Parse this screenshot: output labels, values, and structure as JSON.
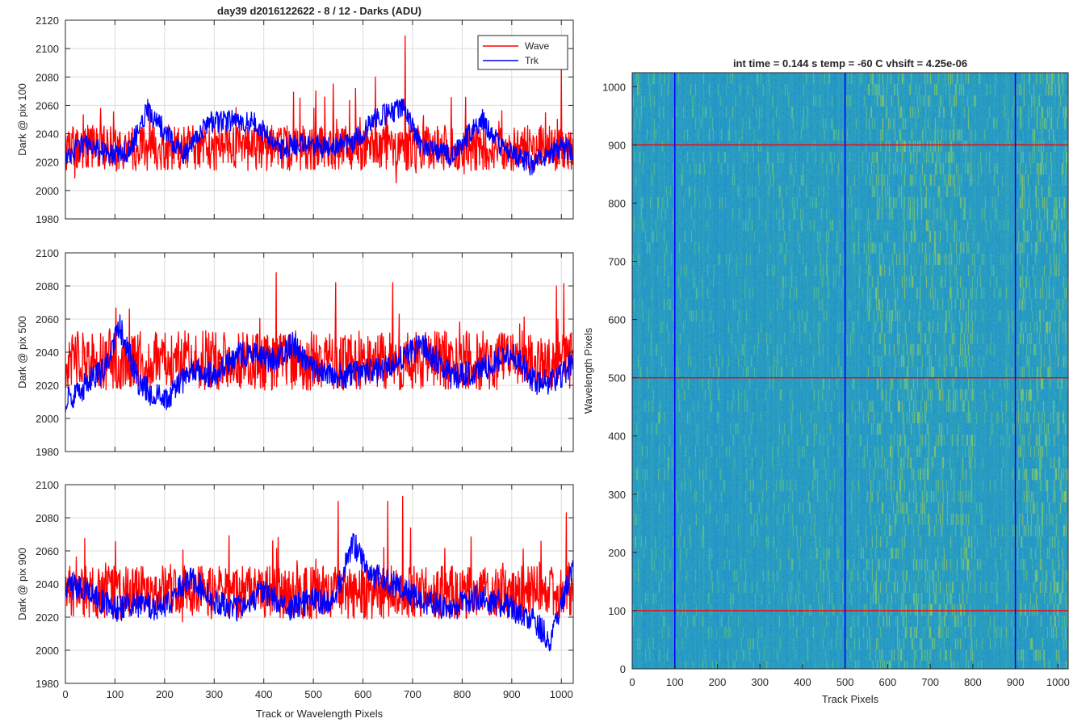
{
  "colors": {
    "wave": "#ff0000",
    "trk": "#0000ff",
    "axis": "#262626",
    "grid": "#dcdcdc"
  },
  "chart_data": [
    {
      "type": "line",
      "panel": "top-left",
      "title": "day39 d2016122622 - 8 / 12 - Darks (ADU)",
      "xlabel": "",
      "ylabel": "Dark @ pix 100",
      "xlim": [
        0,
        1024
      ],
      "ylim": [
        1980,
        2120
      ],
      "xticks": [
        0,
        100,
        200,
        300,
        400,
        500,
        600,
        700,
        800,
        900,
        1000
      ],
      "yticks": [
        1980,
        2000,
        2020,
        2040,
        2060,
        2080,
        2100,
        2120
      ],
      "xticklabels_shown": false,
      "grid": true,
      "legend": {
        "placement": "top-right",
        "entries": [
          "Wave",
          "Trk"
        ]
      },
      "series": [
        {
          "name": "Wave",
          "color": "#ff0000",
          "n_points": 1024,
          "mean_level": 2030,
          "noise_range": 16,
          "features": [
            [
              540,
              2075
            ],
            [
              585,
              2072
            ],
            [
              625,
              2080
            ],
            [
              685,
              2109
            ],
            [
              1000,
              2088
            ]
          ]
        },
        {
          "name": "Trk",
          "color": "#0000ff",
          "n_points": 1024,
          "profile": [
            [
              0,
              2025
            ],
            [
              40,
              2032
            ],
            [
              90,
              2025
            ],
            [
              130,
              2028
            ],
            [
              165,
              2058
            ],
            [
              200,
              2042
            ],
            [
              240,
              2025
            ],
            [
              290,
              2048
            ],
            [
              330,
              2050
            ],
            [
              380,
              2048
            ],
            [
              430,
              2030
            ],
            [
              480,
              2033
            ],
            [
              530,
              2030
            ],
            [
              580,
              2035
            ],
            [
              630,
              2052
            ],
            [
              680,
              2058
            ],
            [
              720,
              2030
            ],
            [
              780,
              2025
            ],
            [
              840,
              2050
            ],
            [
              880,
              2030
            ],
            [
              940,
              2018
            ],
            [
              1000,
              2030
            ],
            [
              1024,
              2028
            ]
          ]
        }
      ]
    },
    {
      "type": "line",
      "panel": "middle-left",
      "title": "",
      "xlabel": "",
      "ylabel": "Dark @ pix 500",
      "xlim": [
        0,
        1024
      ],
      "ylim": [
        1980,
        2100
      ],
      "xticks": [
        0,
        100,
        200,
        300,
        400,
        500,
        600,
        700,
        800,
        900,
        1000
      ],
      "yticks": [
        1980,
        2000,
        2020,
        2040,
        2060,
        2080,
        2100
      ],
      "xticklabels_shown": false,
      "grid": true,
      "series": [
        {
          "name": "Wave",
          "color": "#ff0000",
          "n_points": 1024,
          "mean_level": 2035,
          "noise_range": 18,
          "features": [
            [
              425,
              2088
            ],
            [
              545,
              2082
            ],
            [
              660,
              2082
            ],
            [
              990,
              2080
            ]
          ]
        },
        {
          "name": "Trk",
          "color": "#0000ff",
          "n_points": 1024,
          "profile": [
            [
              0,
              2010
            ],
            [
              40,
              2020
            ],
            [
              80,
              2030
            ],
            [
              110,
              2055
            ],
            [
              150,
              2020
            ],
            [
              200,
              2010
            ],
            [
              260,
              2030
            ],
            [
              300,
              2025
            ],
            [
              350,
              2038
            ],
            [
              380,
              2040
            ],
            [
              420,
              2035
            ],
            [
              460,
              2045
            ],
            [
              500,
              2030
            ],
            [
              560,
              2025
            ],
            [
              600,
              2028
            ],
            [
              650,
              2030
            ],
            [
              720,
              2045
            ],
            [
              780,
              2025
            ],
            [
              840,
              2030
            ],
            [
              900,
              2040
            ],
            [
              950,
              2020
            ],
            [
              1000,
              2025
            ],
            [
              1024,
              2035
            ]
          ]
        }
      ]
    },
    {
      "type": "line",
      "panel": "bottom-left",
      "title": "",
      "xlabel": "Track or Wavelength Pixels",
      "ylabel": "Dark @ pix 900",
      "xlim": [
        0,
        1024
      ],
      "ylim": [
        1980,
        2100
      ],
      "xticks": [
        0,
        100,
        200,
        300,
        400,
        500,
        600,
        700,
        800,
        900,
        1000
      ],
      "yticks": [
        1980,
        2000,
        2020,
        2040,
        2060,
        2080,
        2100
      ],
      "xticklabels_shown": true,
      "grid": true,
      "series": [
        {
          "name": "Wave",
          "color": "#ff0000",
          "n_points": 1024,
          "mean_level": 2035,
          "noise_range": 16,
          "features": [
            [
              550,
              2090
            ],
            [
              650,
              2090
            ],
            [
              680,
              2093
            ],
            [
              1010,
              2083
            ]
          ]
        },
        {
          "name": "Trk",
          "color": "#0000ff",
          "n_points": 1024,
          "profile": [
            [
              0,
              2040
            ],
            [
              50,
              2035
            ],
            [
              100,
              2025
            ],
            [
              150,
              2028
            ],
            [
              200,
              2025
            ],
            [
              250,
              2045
            ],
            [
              300,
              2030
            ],
            [
              350,
              2025
            ],
            [
              400,
              2035
            ],
            [
              450,
              2025
            ],
            [
              500,
              2030
            ],
            [
              540,
              2028
            ],
            [
              580,
              2065
            ],
            [
              620,
              2045
            ],
            [
              660,
              2040
            ],
            [
              720,
              2030
            ],
            [
              780,
              2025
            ],
            [
              830,
              2032
            ],
            [
              880,
              2028
            ],
            [
              940,
              2020
            ],
            [
              980,
              2005
            ],
            [
              1000,
              2030
            ],
            [
              1024,
              2050
            ]
          ]
        }
      ]
    },
    {
      "type": "heatmap",
      "panel": "right",
      "title": "int time = 0.144 s   temp = -60 C   vhsift = 4.25e-06",
      "xlabel": "Track Pixels",
      "ylabel": "Wavelength Pixels",
      "xlim": [
        0,
        1024
      ],
      "ylim": [
        0,
        1024
      ],
      "xticks": [
        0,
        100,
        200,
        300,
        400,
        500,
        600,
        700,
        800,
        900,
        1000
      ],
      "yticks": [
        0,
        100,
        200,
        300,
        400,
        500,
        600,
        700,
        800,
        900,
        1000
      ],
      "colormap": "parula",
      "value_range": [
        1980,
        2120
      ],
      "background_level": 2030,
      "bright_streak_regions": [
        [
          550,
          800
        ],
        [
          900,
          1024
        ]
      ],
      "marker_lines": [
        {
          "orientation": "horizontal",
          "value": 100,
          "color": "#ff0000"
        },
        {
          "orientation": "horizontal",
          "value": 500,
          "color": "#ff0000"
        },
        {
          "orientation": "horizontal",
          "value": 900,
          "color": "#ff0000"
        },
        {
          "orientation": "vertical",
          "value": 100,
          "color": "#0000ff"
        },
        {
          "orientation": "vertical",
          "value": 500,
          "color": "#0000ff"
        },
        {
          "orientation": "vertical",
          "value": 900,
          "color": "#0000ff"
        }
      ]
    }
  ]
}
